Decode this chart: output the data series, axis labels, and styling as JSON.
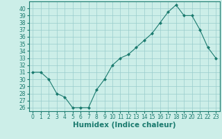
{
  "x": [
    0,
    1,
    2,
    3,
    4,
    5,
    6,
    7,
    8,
    9,
    10,
    11,
    12,
    13,
    14,
    15,
    16,
    17,
    18,
    19,
    20,
    21,
    22,
    23
  ],
  "y": [
    31,
    31,
    30,
    28,
    27.5,
    26,
    26,
    26,
    28.5,
    30,
    32,
    33,
    33.5,
    34.5,
    35.5,
    36.5,
    38,
    39.5,
    40.5,
    39,
    39,
    37,
    34.5,
    33
  ],
  "line_color": "#1a7a6e",
  "marker": "D",
  "marker_size": 2.0,
  "bg_color": "#cceee8",
  "grid_color": "#99cccc",
  "xlabel": "Humidex (Indice chaleur)",
  "ylim": [
    25.5,
    41
  ],
  "xlim": [
    -0.5,
    23.5
  ],
  "yticks": [
    26,
    27,
    28,
    29,
    30,
    31,
    32,
    33,
    34,
    35,
    36,
    37,
    38,
    39,
    40
  ],
  "xticks": [
    0,
    1,
    2,
    3,
    4,
    5,
    6,
    7,
    8,
    9,
    10,
    11,
    12,
    13,
    14,
    15,
    16,
    17,
    18,
    19,
    20,
    21,
    22,
    23
  ],
  "tick_fontsize": 5.5,
  "xlabel_fontsize": 7.5
}
